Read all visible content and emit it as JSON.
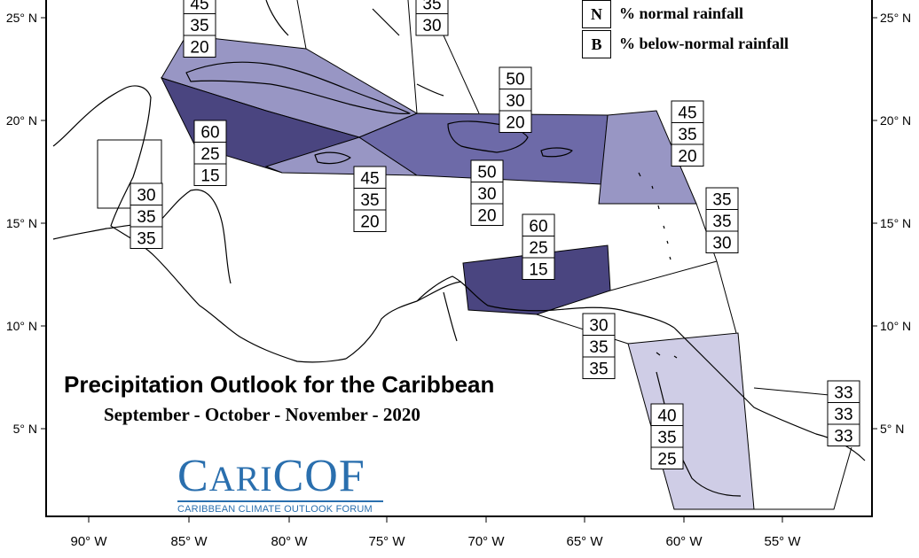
{
  "map": {
    "title": "Precipitation Outlook for the Caribbean",
    "subtitle": "September - October - November - 2020",
    "latitude_labels_left": [
      "25° N",
      "20° N",
      "15° N",
      "10° N",
      "5° N"
    ],
    "latitude_labels_right": [
      "25° N",
      "20° N",
      "15° N",
      "10° N",
      "5° N"
    ],
    "longitude_labels": [
      "90° W",
      "85° W",
      "80° W",
      "75° W",
      "70° W",
      "65° W",
      "60° W",
      "55° W"
    ],
    "legend": [
      {
        "key": "N",
        "text": "% normal rainfall"
      },
      {
        "key": "B",
        "text": "% below-normal rainfall"
      }
    ],
    "logo": {
      "text_main_big": "C",
      "text_main_rest": "ARI",
      "text_main_tail": "COF",
      "subtext": "CARIBBEAN CLIMATE OUTLOOK FORUM"
    },
    "colors": {
      "dark": "#4a4580",
      "medium_dark": "#6d6aa8",
      "medium": "#9896c4",
      "light": "#cfcde6",
      "border": "#000000"
    },
    "probability_boxes": [
      {
        "id": "cuba-top",
        "values": [
          "45",
          "35",
          "20"
        ],
        "partial": true
      },
      {
        "id": "bahamas",
        "values": [
          "35",
          "30"
        ],
        "partial": true
      },
      {
        "id": "jamaica-cuba-west",
        "values": [
          "60",
          "25",
          "15"
        ]
      },
      {
        "id": "belize",
        "values": [
          "30",
          "35",
          "35"
        ]
      },
      {
        "id": "jamaica-south",
        "values": [
          "45",
          "35",
          "20"
        ]
      },
      {
        "id": "hispaniola-north",
        "values": [
          "50",
          "30",
          "20"
        ]
      },
      {
        "id": "hispaniola-south",
        "values": [
          "50",
          "30",
          "20"
        ]
      },
      {
        "id": "leeward-islands",
        "values": [
          "45",
          "35",
          "20"
        ]
      },
      {
        "id": "windward-islands",
        "values": [
          "35",
          "35",
          "30"
        ]
      },
      {
        "id": "abc-islands",
        "values": [
          "60",
          "25",
          "15"
        ]
      },
      {
        "id": "trinidad",
        "values": [
          "30",
          "35",
          "35"
        ]
      },
      {
        "id": "guyana",
        "values": [
          "40",
          "35",
          "25"
        ]
      },
      {
        "id": "suriname-guiana",
        "values": [
          "33",
          "33",
          "33"
        ]
      }
    ]
  }
}
